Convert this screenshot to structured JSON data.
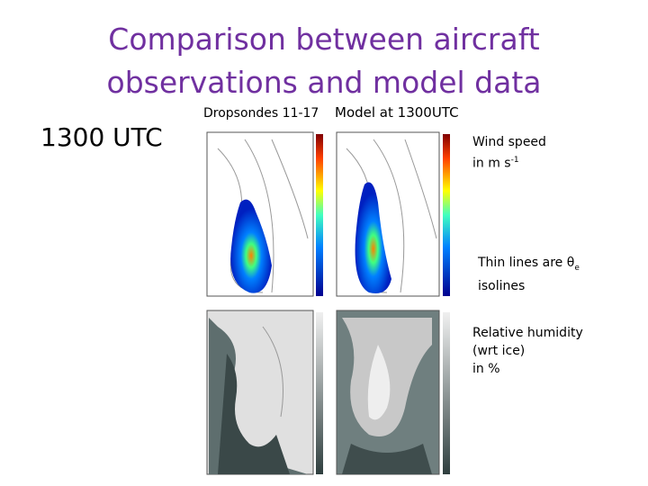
{
  "title_lines": [
    "Comparison between aircraft",
    "observations and model data"
  ],
  "time_label": "1300 UTC",
  "panel_headers": {
    "left": "Dropsondes 11-17",
    "right": "Model at 1300UTC"
  },
  "wind_note": {
    "line1": "Wind speed",
    "line2": "in m s",
    "sup": "-1"
  },
  "theta_note": {
    "prefix": "Thin lines are θ",
    "sub": "e",
    "line2": "isolines"
  },
  "rh_note": [
    "Relative humidity",
    "(wrt ice)",
    "in %"
  ]
}
